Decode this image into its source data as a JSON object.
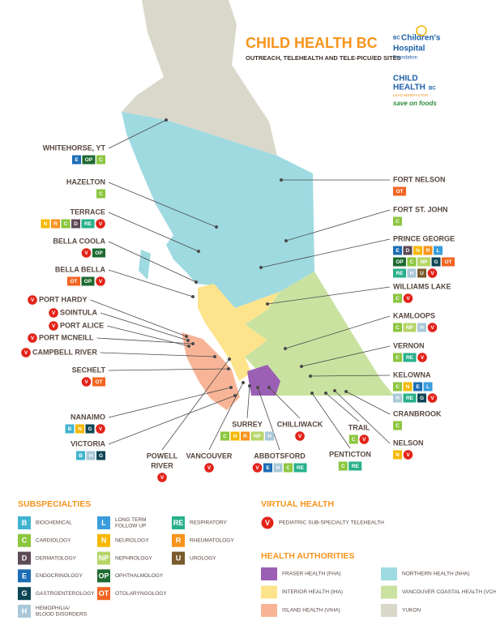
{
  "header": {
    "title": "CHILD HEALTH BC",
    "subtitle": "OUTREACH, TELEHEALTH AND TELE-PICU/ED SITES"
  },
  "logos": {
    "foundation": {
      "prefix": "BC",
      "lines": [
        "Children's",
        "Hospital"
      ],
      "suffix": "Foundation"
    },
    "child_health": {
      "lines": [
        "CHILD",
        "HEALTH"
      ],
      "suffix": "BC",
      "benefactor": "LEAD BENEFACTOR",
      "sponsor": "save on foods"
    }
  },
  "sites": [
    {
      "name": "WHITEHORSE, YT",
      "codes": [
        "E",
        "OP",
        "C"
      ]
    },
    {
      "name": "HAZELTON",
      "codes": [
        "C"
      ]
    },
    {
      "name": "TERRACE",
      "codes": [
        "N",
        "R",
        "C",
        "D",
        "RE",
        "V"
      ]
    },
    {
      "name": "BELLA COOLA",
      "codes": [
        "V",
        "OP"
      ]
    },
    {
      "name": "BELLA BELLA",
      "codes": [
        "OT",
        "OP",
        "V"
      ]
    },
    {
      "name": "PORT HARDY",
      "codes": [
        "V"
      ]
    },
    {
      "name": "SOINTULA",
      "codes": [
        "V"
      ]
    },
    {
      "name": "PORT ALICE",
      "codes": [
        "V"
      ]
    },
    {
      "name": "PORT MCNEILL",
      "codes": [
        "V"
      ]
    },
    {
      "name": "CAMPBELL RIVER",
      "codes": [
        "V"
      ]
    },
    {
      "name": "SECHELT",
      "codes": [
        "V",
        "OT"
      ]
    },
    {
      "name": "NANAIMO",
      "codes": [
        "B",
        "N",
        "G",
        "V"
      ]
    },
    {
      "name": "VICTORIA",
      "codes": [
        "B",
        "H",
        "G"
      ]
    },
    {
      "name": [
        "POWELL",
        "RIVER"
      ],
      "codes": [
        "V"
      ]
    },
    {
      "name": "VANCOUVER",
      "codes": [
        "V"
      ]
    },
    {
      "name": "SURREY",
      "codes": [
        "C",
        "N",
        "R",
        "NP",
        "H"
      ]
    },
    {
      "name": "CHILLIWACK",
      "codes": [
        "V"
      ]
    },
    {
      "name": "ABBOTSFORD",
      "codes": [
        "V",
        "E",
        "H",
        "C",
        "RE"
      ]
    },
    {
      "name": "PENTICTON",
      "codes": [
        "C",
        "RE"
      ]
    },
    {
      "name": "TRAIL",
      "codes": [
        "C",
        "V"
      ]
    },
    {
      "name": "NELSON",
      "codes": [
        "N",
        "V"
      ]
    },
    {
      "name": "CRANBROOK",
      "codes": [
        "C"
      ]
    },
    {
      "name": "KELOWNA",
      "codes": [
        "C",
        "N",
        "E",
        "L",
        "H",
        "RE",
        "G",
        "V"
      ]
    },
    {
      "name": "VERNON",
      "codes": [
        "C",
        "RE",
        "V"
      ]
    },
    {
      "name": "KAMLOOPS",
      "codes": [
        "C",
        "NP",
        "H",
        "V"
      ]
    },
    {
      "name": "WILLIAMS LAKE",
      "codes": [
        "C",
        "V"
      ]
    },
    {
      "name": "PRINCE GEORGE",
      "codes": [
        "E",
        "D",
        "N",
        "R",
        "L",
        "OP",
        "C",
        "NP",
        "G",
        "OT",
        "RE",
        "H",
        "U",
        "V"
      ]
    },
    {
      "name": "FORT ST. JOHN",
      "codes": [
        "C"
      ]
    },
    {
      "name": "FORT NELSON",
      "codes": [
        "OT"
      ]
    }
  ],
  "legend": {
    "subspecialties_title": "SUBSPECIALTIES",
    "subspecialties": [
      {
        "code": "B",
        "label": [
          "BIOCHEMICAL"
        ],
        "color": "#3fb3cf"
      },
      {
        "code": "C",
        "label": [
          "CARDIOLOGY"
        ],
        "color": "#8cc63f"
      },
      {
        "code": "D",
        "label": [
          "DERMATOLOGY"
        ],
        "color": "#5e4b56"
      },
      {
        "code": "E",
        "label": [
          "ENDOCRINOLOGY"
        ],
        "color": "#1c6db5"
      },
      {
        "code": "G",
        "label": [
          "GASTROENTEROLOGY"
        ],
        "color": "#0d4655"
      },
      {
        "code": "H",
        "label": [
          "HEMOPHILIA/",
          "BLOOD DISORDERS"
        ],
        "color": "#a9c8d8"
      },
      {
        "code": "L",
        "label": [
          "LONG TERM",
          "FOLLOW UP"
        ],
        "color": "#3a9ddb"
      },
      {
        "code": "N",
        "label": [
          "NEUROLOGY"
        ],
        "color": "#f6b800"
      },
      {
        "code": "NP",
        "label": [
          "NEPHROLOGY"
        ],
        "color": "#b5d567"
      },
      {
        "code": "OP",
        "label": [
          "OPHTHALMOLOGY"
        ],
        "color": "#1e6a30"
      },
      {
        "code": "OT",
        "label": [
          "OTOLARYNGOLOGY"
        ],
        "color": "#f26522"
      },
      {
        "code": "RE",
        "label": [
          "RESPIRATORY"
        ],
        "color": "#28b08a"
      },
      {
        "code": "R",
        "label": [
          "RHEUMATOLOGY"
        ],
        "color": "#f7941d"
      },
      {
        "code": "U",
        "label": [
          "UROLOGY"
        ],
        "color": "#7a5a2c"
      }
    ],
    "virtual_title": "VIRTUAL HEALTH",
    "virtual": {
      "code": "V",
      "label": "PEDIATRIC SUB-SPECIALTY TELEHEALTH",
      "color": "#e2231a"
    },
    "authorities_title": "HEALTH AUTHORITIES",
    "authorities": [
      {
        "label": "FRASER HEALTH (FHA)",
        "color": "#9b5fb4"
      },
      {
        "label": "NORTHERN HEALTH (NHA)",
        "color": "#9fdae1"
      },
      {
        "label": "INTERIOR HEALTH (IHA)",
        "color": "#fde48c"
      },
      {
        "label": "VANCOUVER COASTAL HEALTH (VCH)",
        "color": "#c9e2a0"
      },
      {
        "label": "ISLAND HEALTH (VIHA)",
        "color": "#f8b497"
      },
      {
        "label": "YUKON",
        "color": "#d9d8cb"
      }
    ]
  }
}
